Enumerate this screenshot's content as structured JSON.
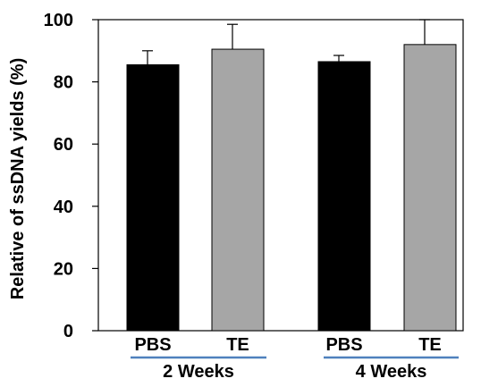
{
  "chart_data": {
    "type": "bar",
    "title": "",
    "xlabel": "",
    "ylabel": "Relative of ssDNA yields (%)",
    "ylim": [
      0,
      100
    ],
    "yticks": [
      "0",
      "20",
      "40",
      "60",
      "80",
      "100"
    ],
    "grid": false,
    "categories": [
      "PBS",
      "TE",
      "PBS",
      "TE"
    ],
    "values": [
      85.5,
      90.5,
      86.5,
      92.0
    ],
    "errors": [
      4.5,
      8.0,
      2.0,
      8.0
    ],
    "bar_colors": [
      "#000000",
      "#a6a6a6",
      "#000000",
      "#a6a6a6"
    ],
    "groups": [
      {
        "label": "2 Weeks",
        "members": [
          0,
          1
        ]
      },
      {
        "label": "4 Weeks",
        "members": [
          2,
          3
        ]
      }
    ],
    "group_line_color": "#4f81bd"
  }
}
